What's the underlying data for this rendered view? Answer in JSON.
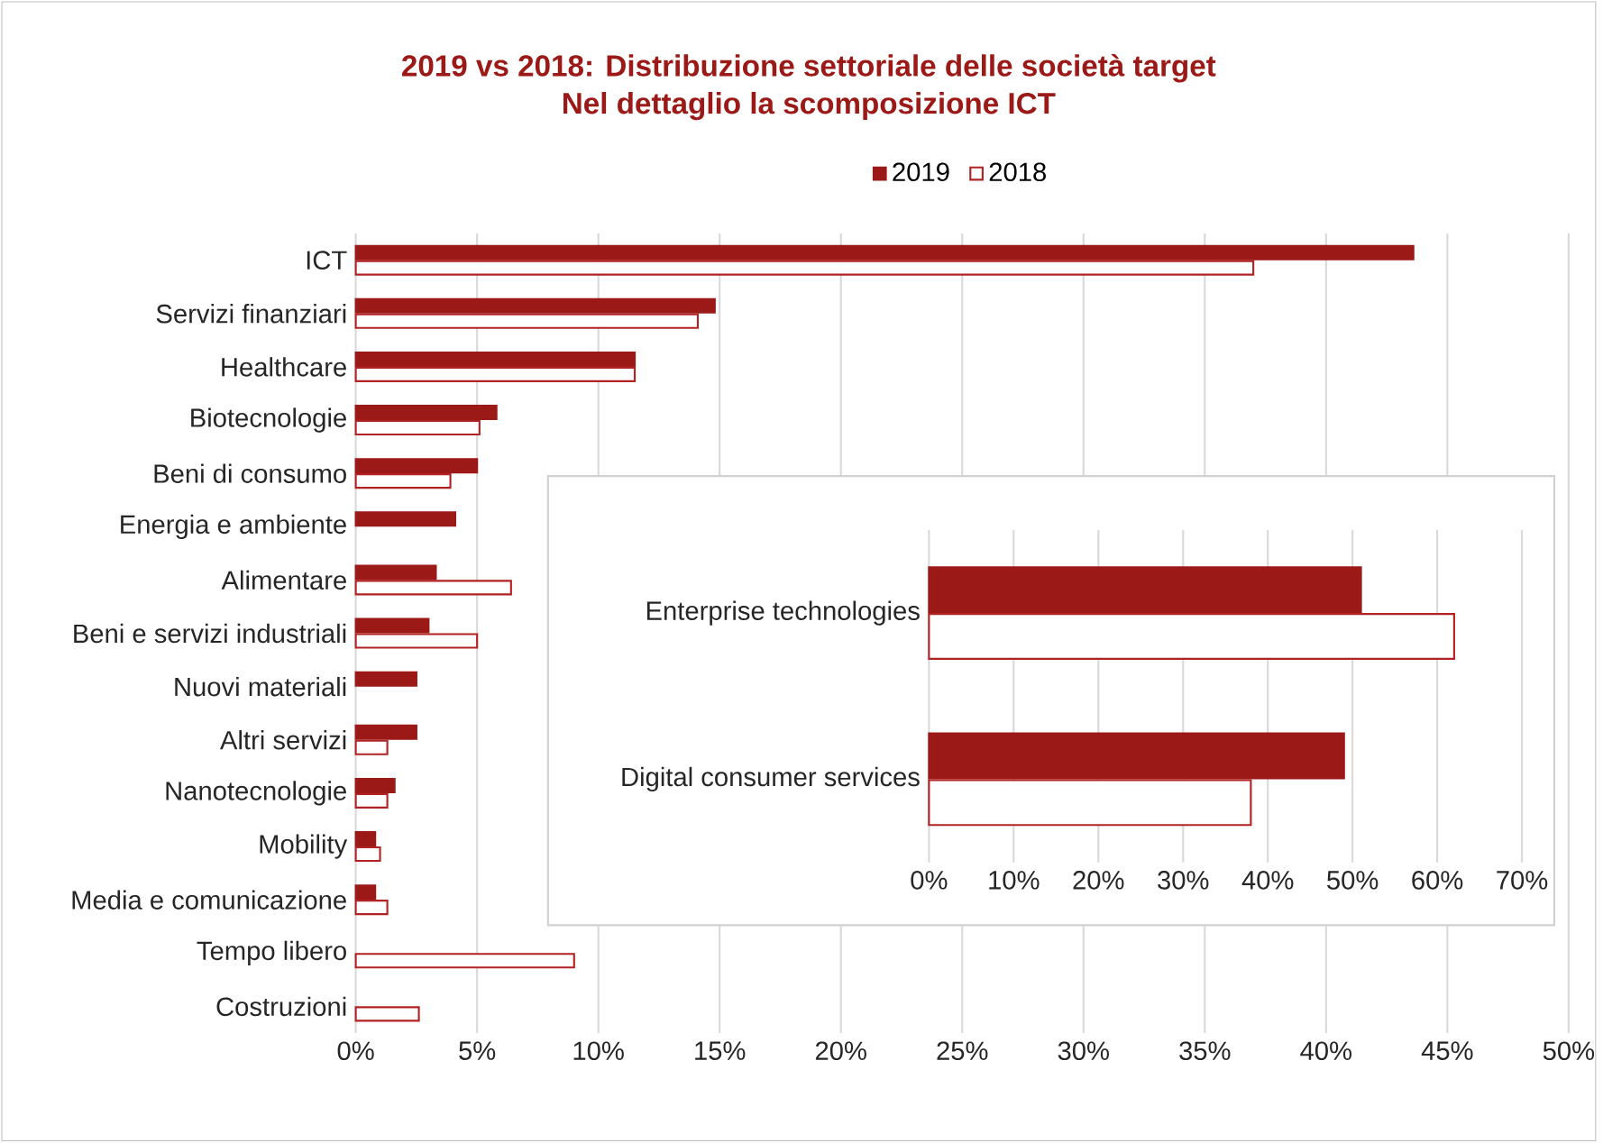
{
  "chart_data": [
    {
      "type": "bar",
      "orientation": "horizontal",
      "title": "2019 vs 2018: Distribuzione settoriale delle società target",
      "subtitle": "Nel dettaglio la scomposizione ICT",
      "categories": [
        "ICT",
        "Servizi finanziari",
        "Healthcare",
        "Biotecnologie",
        "Beni di consumo",
        "Energia e ambiente",
        "Alimentare",
        "Beni e servizi industriali",
        "Nuovi materiali",
        "Altri servizi",
        "Nanotecnologie",
        "Mobility",
        "Media e comunicazione",
        "Tempo libero",
        "Costruzioni"
      ],
      "series": [
        {
          "name": "2019",
          "color": "#9b1a17",
          "values": [
            43.6,
            14.8,
            11.5,
            5.8,
            5.0,
            4.1,
            3.3,
            3.0,
            2.5,
            2.5,
            1.6,
            0.8,
            0.8,
            null,
            null
          ]
        },
        {
          "name": "2018",
          "color": "#ffffff",
          "values": [
            37.0,
            14.1,
            11.5,
            5.1,
            3.9,
            null,
            6.4,
            5.0,
            null,
            1.3,
            1.3,
            1.0,
            1.3,
            9.0,
            2.6
          ]
        }
      ],
      "xlim": [
        0,
        50
      ],
      "xticks": [
        {
          "value": 0,
          "label": "0%"
        },
        {
          "value": 5,
          "label": "5%"
        },
        {
          "value": 10,
          "label": "10%"
        },
        {
          "value": 15,
          "label": "15%"
        },
        {
          "value": 20,
          "label": "20%"
        },
        {
          "value": 25,
          "label": "25%"
        },
        {
          "value": 30,
          "label": "30%"
        },
        {
          "value": 35,
          "label": "35%"
        },
        {
          "value": 40,
          "label": "40%"
        },
        {
          "value": 45,
          "label": "45%"
        },
        {
          "value": 50,
          "label": "50%"
        }
      ],
      "grid": "x",
      "legend": "top"
    },
    {
      "type": "bar",
      "orientation": "horizontal",
      "categories": [
        "Enterprise technologies",
        "Digital consumer services"
      ],
      "series": [
        {
          "color": "#9b1a17",
          "values": [
            51,
            49
          ]
        },
        {
          "color": "#ffffff",
          "values": [
            62,
            38
          ]
        }
      ],
      "xlim": [
        0,
        70
      ],
      "xticks": [
        {
          "value": 0,
          "label": "0%"
        },
        {
          "value": 10,
          "label": "10%"
        },
        {
          "value": 20,
          "label": "20%"
        },
        {
          "value": 30,
          "label": "30%"
        },
        {
          "value": 40,
          "label": "40%"
        },
        {
          "value": 50,
          "label": "50%"
        },
        {
          "value": 60,
          "label": "60%"
        },
        {
          "value": 70,
          "label": "70%"
        }
      ],
      "grid": "x"
    }
  ]
}
